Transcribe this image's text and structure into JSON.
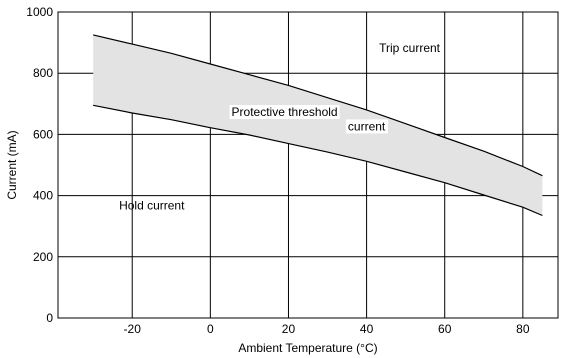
{
  "chart_data": {
    "type": "area",
    "xlabel": "Ambient Temperature (°C)",
    "ylabel": "Current (mA)",
    "xlim": [
      -39,
      89
    ],
    "ylim": [
      0,
      1000
    ],
    "x_ticks": [
      -20,
      0,
      20,
      40,
      60,
      80
    ],
    "y_ticks": [
      0,
      200,
      400,
      600,
      800,
      1000
    ],
    "grid": true,
    "series": [
      {
        "name": "Trip current",
        "x": [
          -30,
          -20,
          -10,
          0,
          10,
          20,
          30,
          40,
          50,
          60,
          70,
          80,
          85
        ],
        "y": [
          925,
          895,
          865,
          830,
          795,
          760,
          720,
          680,
          635,
          590,
          545,
          495,
          465
        ]
      },
      {
        "name": "Hold current",
        "x": [
          -30,
          -20,
          -10,
          0,
          10,
          20,
          30,
          40,
          50,
          60,
          70,
          80,
          85
        ],
        "y": [
          695,
          670,
          648,
          622,
          598,
          570,
          542,
          512,
          477,
          442,
          402,
          362,
          335
        ]
      }
    ],
    "band_color": "#e3e3e3",
    "annotations": [
      {
        "text": "Trip current",
        "x": 51,
        "y": 870
      },
      {
        "text": "Protective threshold",
        "x": 19,
        "y": 660
      },
      {
        "text": "current",
        "x": 40,
        "y": 613
      },
      {
        "text": "Hold current",
        "x": -15,
        "y": 355
      }
    ]
  }
}
